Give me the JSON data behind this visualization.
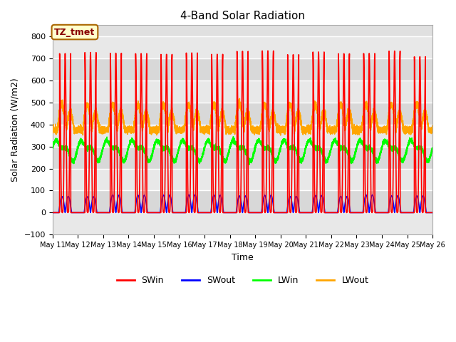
{
  "title": "4-Band Solar Radiation",
  "xlabel": "Time",
  "ylabel": "Solar Radiation (W/m2)",
  "ylim": [
    -100,
    850
  ],
  "yticks": [
    -100,
    0,
    100,
    200,
    300,
    400,
    500,
    600,
    700,
    800
  ],
  "n_days": 15,
  "SWin_peak": 720,
  "SWout_peak": 90,
  "LWin_base": 285,
  "LWin_amplitude": 50,
  "LWout_base": 375,
  "LWout_amplitude": 115,
  "colors": {
    "SWin": "#ff0000",
    "SWout": "#0000ff",
    "LWin": "#00ff00",
    "LWout": "#ffa500"
  },
  "annotation_text": "TZ_tmet",
  "annotation_box_color": "#ffffcc",
  "annotation_text_color": "#880000",
  "annotation_edge_color": "#aa6600",
  "background_color": "#e0e0e0",
  "grid_color": "#ffffff",
  "tick_labels": [
    "May 11",
    "May 12",
    "May 13",
    "May 14",
    "May 15",
    "May 16",
    "May 17",
    "May 18",
    "May 19",
    "May 20",
    "May 21",
    "May 22",
    "May 23",
    "May 24",
    "May 25",
    "May 26"
  ]
}
